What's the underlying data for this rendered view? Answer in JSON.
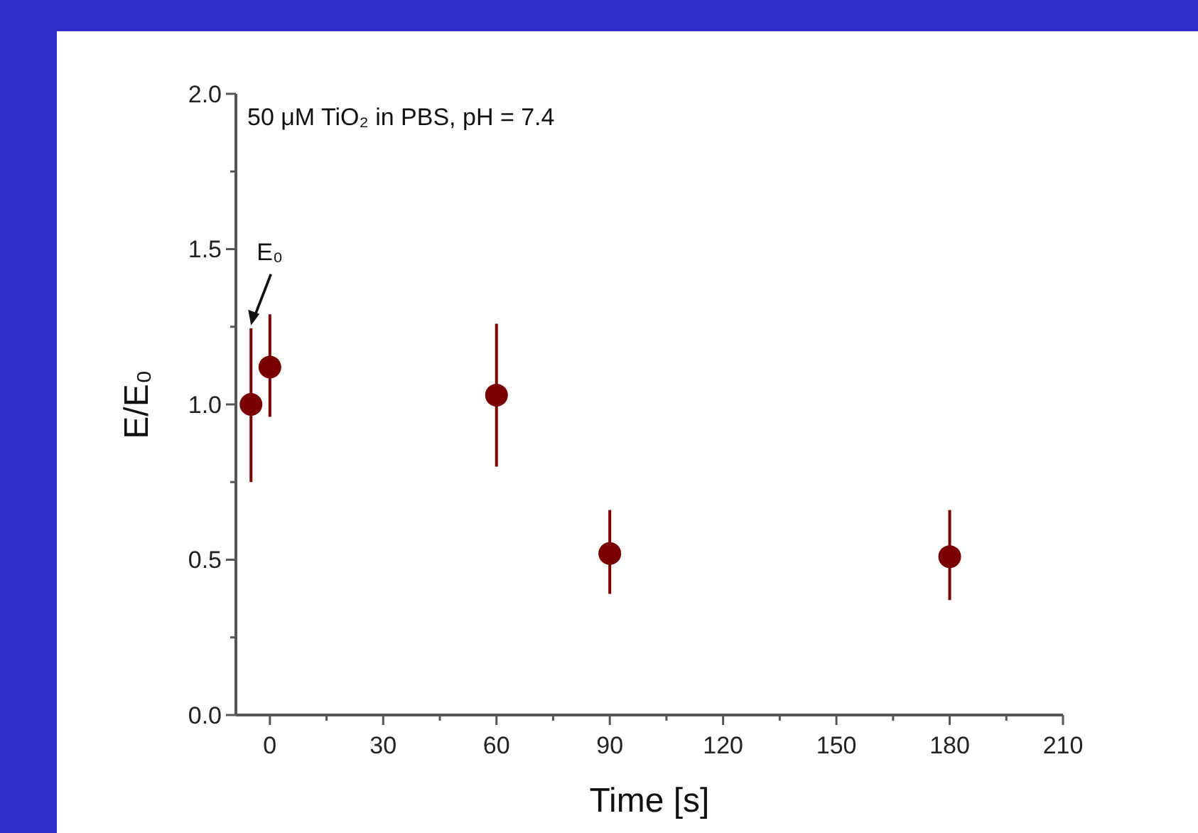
{
  "chart_data": {
    "type": "scatter",
    "xlabel": "Time [s]",
    "ylabel": "E/E₀",
    "x": [
      -5,
      0,
      60,
      90,
      180
    ],
    "series": [
      {
        "color": "#7a0000",
        "values": [
          1.0,
          1.12,
          1.03,
          0.52,
          0.51
        ],
        "errors": [
          [
            0.75,
            1.245
          ],
          [
            0.96,
            1.29
          ],
          [
            0.8,
            1.26
          ],
          [
            0.39,
            0.66
          ],
          [
            0.37,
            0.66
          ]
        ]
      }
    ],
    "xlim": [
      -9,
      210
    ],
    "ylim": [
      0,
      2
    ],
    "xticks": [
      0,
      {
        "value": 15,
        "label": null
      },
      30,
      {
        "value": 45,
        "label": null
      },
      60,
      {
        "value": 75,
        "label": null
      },
      90,
      {
        "value": 105,
        "label": null
      },
      120,
      {
        "value": 135,
        "label": null
      },
      150,
      {
        "value": 165,
        "label": null
      },
      180,
      {
        "value": 195,
        "label": null
      },
      210
    ],
    "yticks": [
      {
        "value": 0,
        "label": "0.0"
      },
      {
        "value": 0.25,
        "label": null
      },
      0.5,
      {
        "value": 0.75,
        "label": null
      },
      {
        "value": 1,
        "label": "1.0"
      },
      {
        "value": 1.25,
        "label": null
      },
      1.5,
      {
        "value": 1.75,
        "label": null
      },
      {
        "value": 2,
        "label": "2.0"
      }
    ],
    "marker": "circle",
    "grid": false,
    "annotations": [
      "50 μM TiO₂ in PBS, pH = 7.4",
      {
        "text": "E₀",
        "x": -5,
        "y": 1.25
      }
    ]
  }
}
